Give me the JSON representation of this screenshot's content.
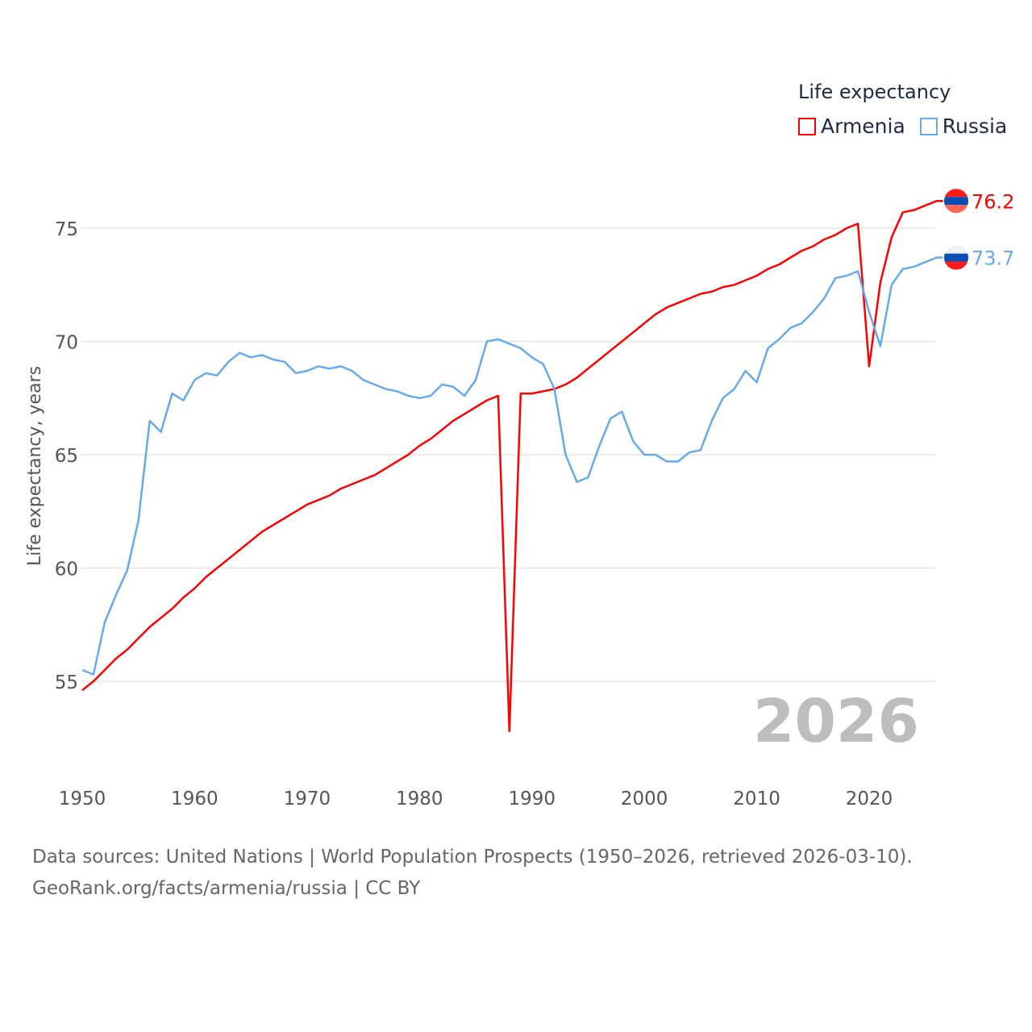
{
  "legend": {
    "title": "Life expectancy",
    "items": [
      {
        "label": "Armenia",
        "color": "#ff0000"
      },
      {
        "label": "Russia",
        "color": "#66aaee"
      }
    ]
  },
  "year_watermark": "2026",
  "source": {
    "line1": "Data sources: United Nations | World Population Prospects (1950–2026, retrieved 2026-03-10).",
    "line2": "GeoRank.org/facts/armenia/russia | CC BY"
  },
  "chart_data": {
    "type": "line",
    "title": "Life expectancy",
    "xlabel": "",
    "ylabel": "Life expectancy, years",
    "xlim": [
      1950,
      2026
    ],
    "ylim": [
      52,
      77
    ],
    "grid": true,
    "legend_position": "top-right",
    "x_ticks": [
      "1950",
      "1960",
      "1970",
      "1980",
      "1990",
      "2000",
      "2010",
      "2020"
    ],
    "y_ticks": [
      "55",
      "60",
      "65",
      "70",
      "75"
    ],
    "x_start": 1950,
    "series": [
      {
        "name": "Armenia",
        "color": "#ff0000",
        "end_label": "76.2",
        "values": [
          54.6,
          55.0,
          55.5,
          56.0,
          56.4,
          56.9,
          57.4,
          57.8,
          58.2,
          58.7,
          59.1,
          59.6,
          60.0,
          60.4,
          60.8,
          61.2,
          61.6,
          61.9,
          62.2,
          62.5,
          62.8,
          63.0,
          63.2,
          63.5,
          63.7,
          63.9,
          64.1,
          64.4,
          64.7,
          65.0,
          65.4,
          65.7,
          66.1,
          66.5,
          66.8,
          67.1,
          67.4,
          67.6,
          52.8,
          67.7,
          67.7,
          67.8,
          67.9,
          68.1,
          68.4,
          68.8,
          69.2,
          69.6,
          70.0,
          70.4,
          70.8,
          71.2,
          71.5,
          71.7,
          71.9,
          72.1,
          72.2,
          72.4,
          72.5,
          72.7,
          72.9,
          73.2,
          73.4,
          73.7,
          74.0,
          74.2,
          74.5,
          74.7,
          75.0,
          75.2,
          68.9,
          72.6,
          74.6,
          75.7,
          75.8,
          76.0,
          76.2
        ]
      },
      {
        "name": "Russia",
        "color": "#66aaee",
        "end_label": "73.7",
        "values": [
          55.5,
          55.3,
          57.6,
          58.8,
          59.9,
          62.1,
          66.5,
          66.0,
          67.7,
          67.4,
          68.3,
          68.6,
          68.5,
          69.1,
          69.5,
          69.3,
          69.4,
          69.2,
          69.1,
          68.6,
          68.7,
          68.9,
          68.8,
          68.9,
          68.7,
          68.3,
          68.1,
          67.9,
          67.8,
          67.6,
          67.5,
          67.6,
          68.1,
          68.0,
          67.6,
          68.3,
          70.0,
          70.1,
          69.9,
          69.7,
          69.3,
          69.0,
          67.9,
          65.0,
          63.8,
          64.0,
          65.4,
          66.6,
          66.9,
          65.6,
          65.0,
          65.0,
          64.7,
          64.7,
          65.1,
          65.2,
          66.5,
          67.5,
          67.9,
          68.7,
          68.2,
          69.7,
          70.1,
          70.6,
          70.8,
          71.3,
          71.9,
          72.8,
          72.9,
          73.1,
          71.3,
          69.8,
          72.5,
          73.2,
          73.3,
          73.5,
          73.7
        ]
      }
    ]
  }
}
